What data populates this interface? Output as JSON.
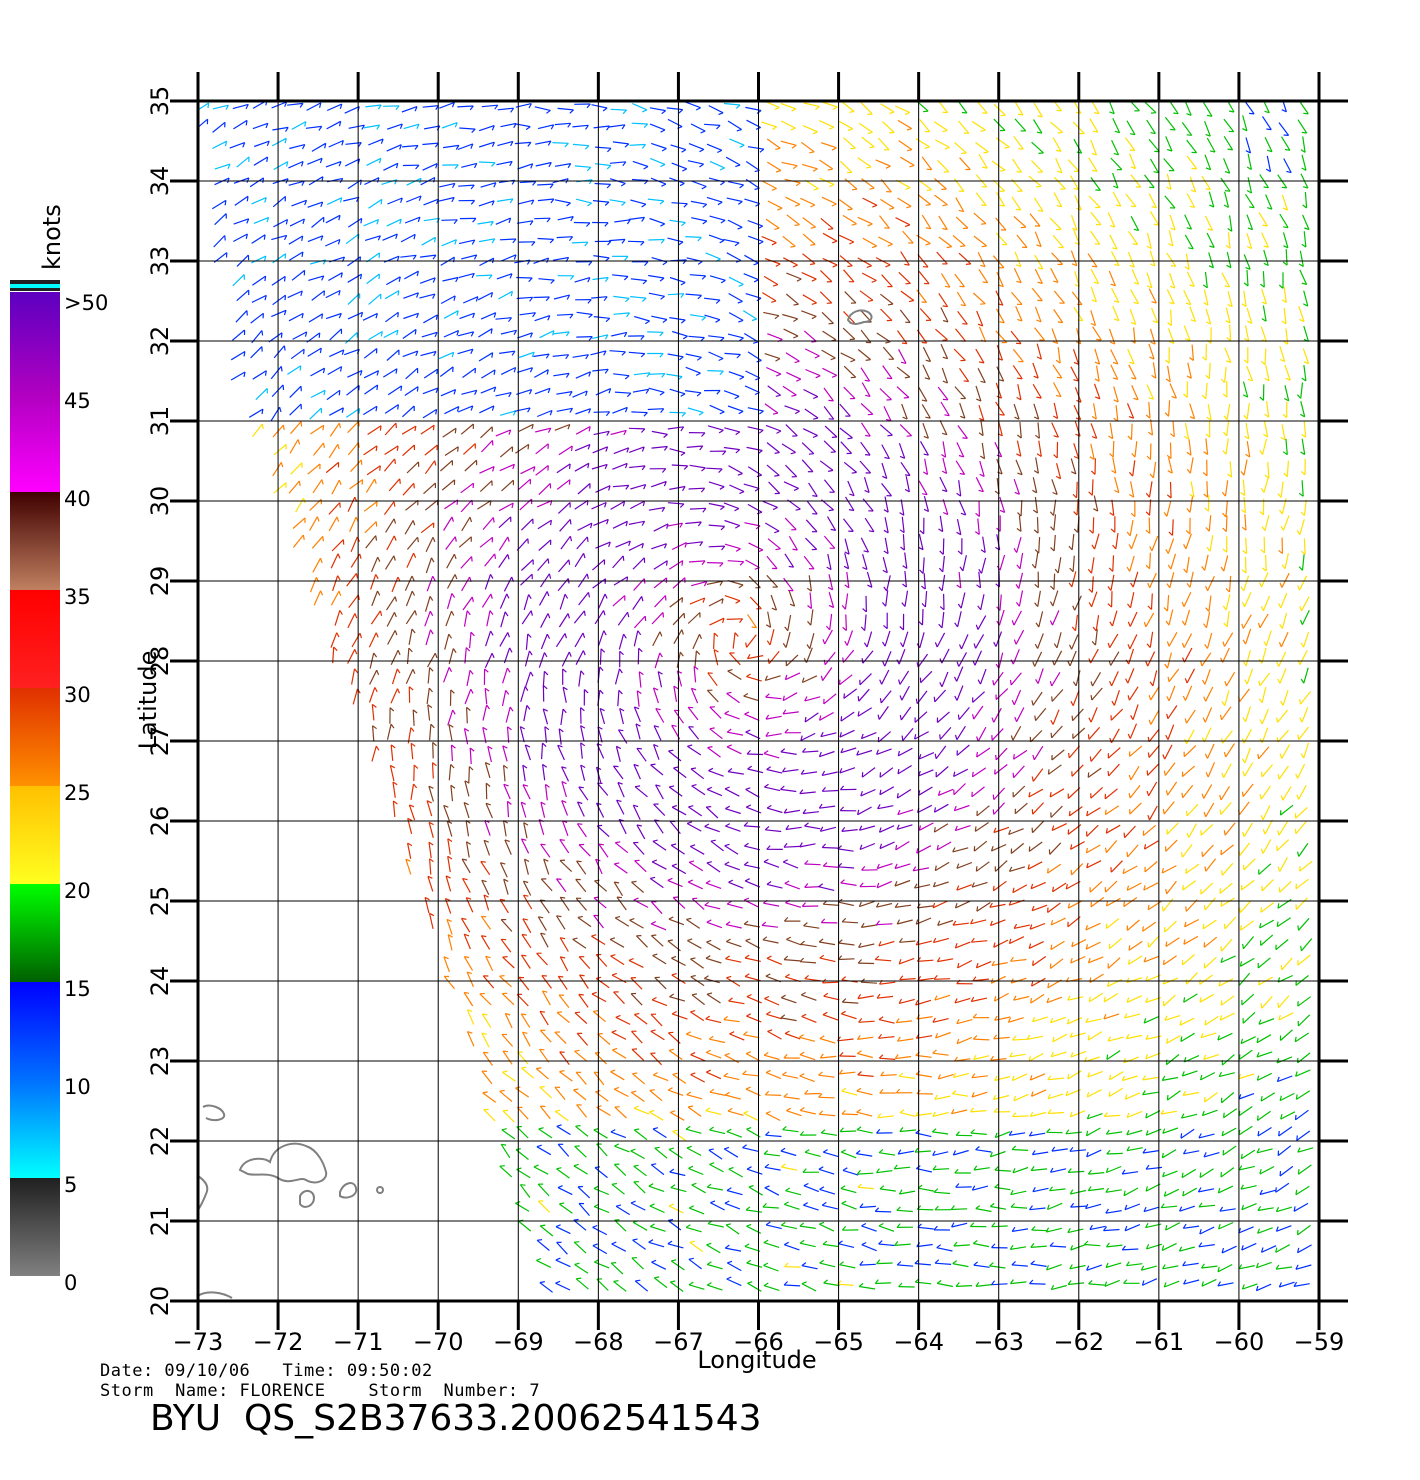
{
  "map": {
    "lon_range": [
      -73,
      -59
    ],
    "lat_range": [
      20,
      35
    ],
    "lon_ticks": [
      "−73",
      "−72",
      "−71",
      "−70",
      "−69",
      "−68",
      "−67",
      "−66",
      "−65",
      "−64",
      "−63",
      "−62",
      "−61",
      "−60",
      "−59"
    ],
    "lat_ticks": [
      "20",
      "21",
      "22",
      "23",
      "24",
      "25",
      "26",
      "27",
      "28",
      "29",
      "30",
      "31",
      "32",
      "33",
      "34",
      "35"
    ],
    "xlabel": "Longitude",
    "ylabel": "Latitude",
    "grid": true,
    "layer": "wind vectors",
    "storm_center": {
      "lon": -66.2,
      "lat": 28.3
    },
    "coastline_color": "#808080"
  },
  "colorbar": {
    "unit": "knots",
    "labels": [
      ">50",
      "45",
      "40",
      "35",
      "30",
      "25",
      "20",
      "15",
      "10",
      "5",
      "0"
    ],
    "stops": [
      {
        "knots": 0,
        "color": "#808080"
      },
      {
        "knots": 5,
        "color": "#202020"
      },
      {
        "knots": 5,
        "color": "#00ffff"
      },
      {
        "knots": 10,
        "color": "#0070ff"
      },
      {
        "knots": 15,
        "color": "#0000ff"
      },
      {
        "knots": 15,
        "color": "#006000"
      },
      {
        "knots": 20,
        "color": "#00ff00"
      },
      {
        "knots": 20,
        "color": "#ffff20"
      },
      {
        "knots": 25,
        "color": "#ffc000"
      },
      {
        "knots": 25,
        "color": "#ff9000"
      },
      {
        "knots": 30,
        "color": "#e03000"
      },
      {
        "knots": 30,
        "color": "#ff2020"
      },
      {
        "knots": 35,
        "color": "#ff0000"
      },
      {
        "knots": 35,
        "color": "#c08060"
      },
      {
        "knots": 40,
        "color": "#400000"
      },
      {
        "knots": 40,
        "color": "#ff00ff"
      },
      {
        "knots": 45,
        "color": "#b000c0"
      },
      {
        "knots": 50,
        "color": "#6000c0"
      }
    ]
  },
  "info": {
    "date_line": "Date: 09/10/06   Time: 09:50:02",
    "storm_line": "Storm  Name: FLORENCE    Storm  Number: 7",
    "file_id": "BYU  QS_S2B37633.20062541543"
  }
}
